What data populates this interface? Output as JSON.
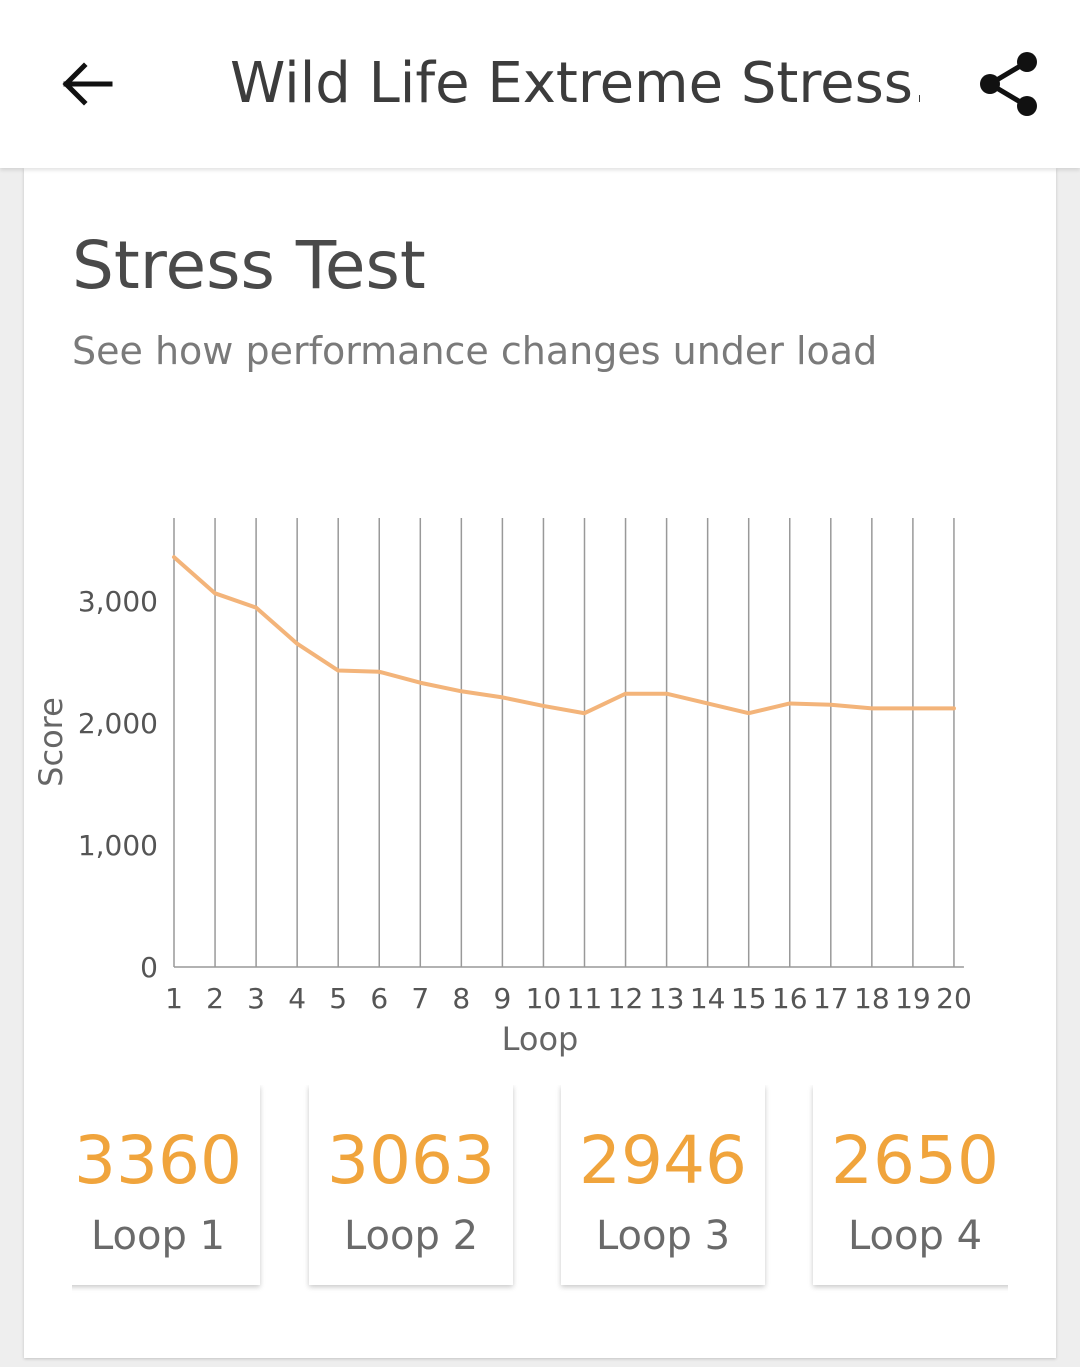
{
  "header": {
    "title": "Wild Life Extreme Stress...",
    "back_icon": "arrow-left-icon",
    "share_icon": "share-icon"
  },
  "card": {
    "title": "Stress Test",
    "subtitle": "See how performance changes under load"
  },
  "colors": {
    "accent": "#f0a43c",
    "line": "#f3b47a",
    "grid": "#999999"
  },
  "chart_data": {
    "type": "line",
    "xlabel": "Loop",
    "ylabel": "Score",
    "x": [
      1,
      2,
      3,
      4,
      5,
      6,
      7,
      8,
      9,
      10,
      11,
      12,
      13,
      14,
      15,
      16,
      17,
      18,
      19,
      20
    ],
    "series": [
      {
        "values": [
          3360,
          3063,
          2946,
          2650,
          2430,
          2420,
          2330,
          2260,
          2210,
          2140,
          2080,
          2240,
          2240,
          2160,
          2080,
          2160,
          2150,
          2120,
          2120,
          2120
        ]
      }
    ],
    "ylim": [
      0,
      3700
    ],
    "yticks": [
      0,
      1000,
      2000,
      3000
    ],
    "ytick_labels": [
      "0",
      "1,000",
      "2,000",
      "3,000"
    ],
    "grid": "vertical"
  },
  "tiles": [
    {
      "value": "3360",
      "label": "Loop 1"
    },
    {
      "value": "3063",
      "label": "Loop 2"
    },
    {
      "value": "2946",
      "label": "Loop 3"
    },
    {
      "value": "2650",
      "label": "Loop 4"
    }
  ]
}
